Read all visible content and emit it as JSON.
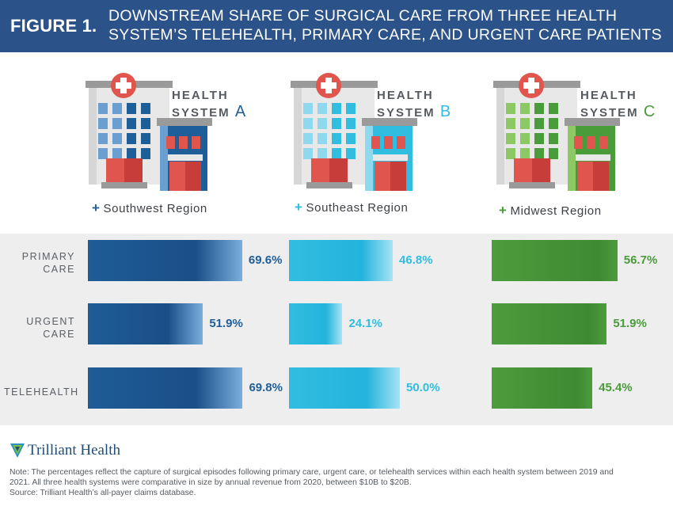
{
  "header": {
    "figure_label": "FIGURE 1.",
    "title_line1": "DOWNSTREAM SHARE OF SURGICAL CARE FROM THREE HEALTH",
    "title_line2": "SYSTEM’S TELEHEALTH, PRIMARY CARE, AND URGENT CARE PATIENTS"
  },
  "systems": [
    {
      "label": "HEALTH",
      "label2": "SYSTEM",
      "letter": "A",
      "region": "Southwest Region",
      "plus": "+",
      "color": "#1f5f99",
      "light": "#6a9fd0"
    },
    {
      "label": "HEALTH",
      "label2": "SYSTEM",
      "letter": "B",
      "region": "Southeast Region",
      "plus": "+",
      "color": "#31bde0",
      "light": "#8ed9ee"
    },
    {
      "label": "HEALTH",
      "label2": "SYSTEM",
      "letter": "C",
      "region": "Midwest Region",
      "plus": "+",
      "color": "#4a9b3a",
      "light": "#8cc864"
    }
  ],
  "rows": [
    {
      "line1": "PRIMARY",
      "line2": "CARE"
    },
    {
      "line1": "URGENT",
      "line2": "CARE"
    },
    {
      "line1": "TELEHEALTH",
      "line2": ""
    }
  ],
  "chart_data": {
    "type": "bar",
    "title": "Downstream share of surgical care from three health system's telehealth, primary care, and urgent care patients",
    "categories": [
      "Primary Care",
      "Urgent Care",
      "Telehealth"
    ],
    "series": [
      {
        "name": "Health System A",
        "values": [
          69.6,
          51.9,
          69.8
        ],
        "labels": [
          "69.6%",
          "51.9%",
          "69.8%"
        ]
      },
      {
        "name": "Health System B",
        "values": [
          46.8,
          24.1,
          50.0
        ],
        "labels": [
          "46.8%",
          "24.1%",
          "50.0%"
        ]
      },
      {
        "name": "Health System C",
        "values": [
          56.7,
          51.9,
          45.4
        ],
        "labels": [
          "56.7%",
          "51.9%",
          "45.4%"
        ]
      }
    ],
    "unit": "%"
  },
  "footer": {
    "logo_text": "Trilliant Health",
    "note_line1": "Note: The percentages reflect the capture of surgical episodes following primary care, urgent care, or telehealth services within each health system between 2019 and",
    "note_line2": "2021. All three health systems were comparative in size by annual revenue from 2020, between $10B to $20B.",
    "note_line3": "Source: Trilliant Health’s all-payer claims database."
  }
}
